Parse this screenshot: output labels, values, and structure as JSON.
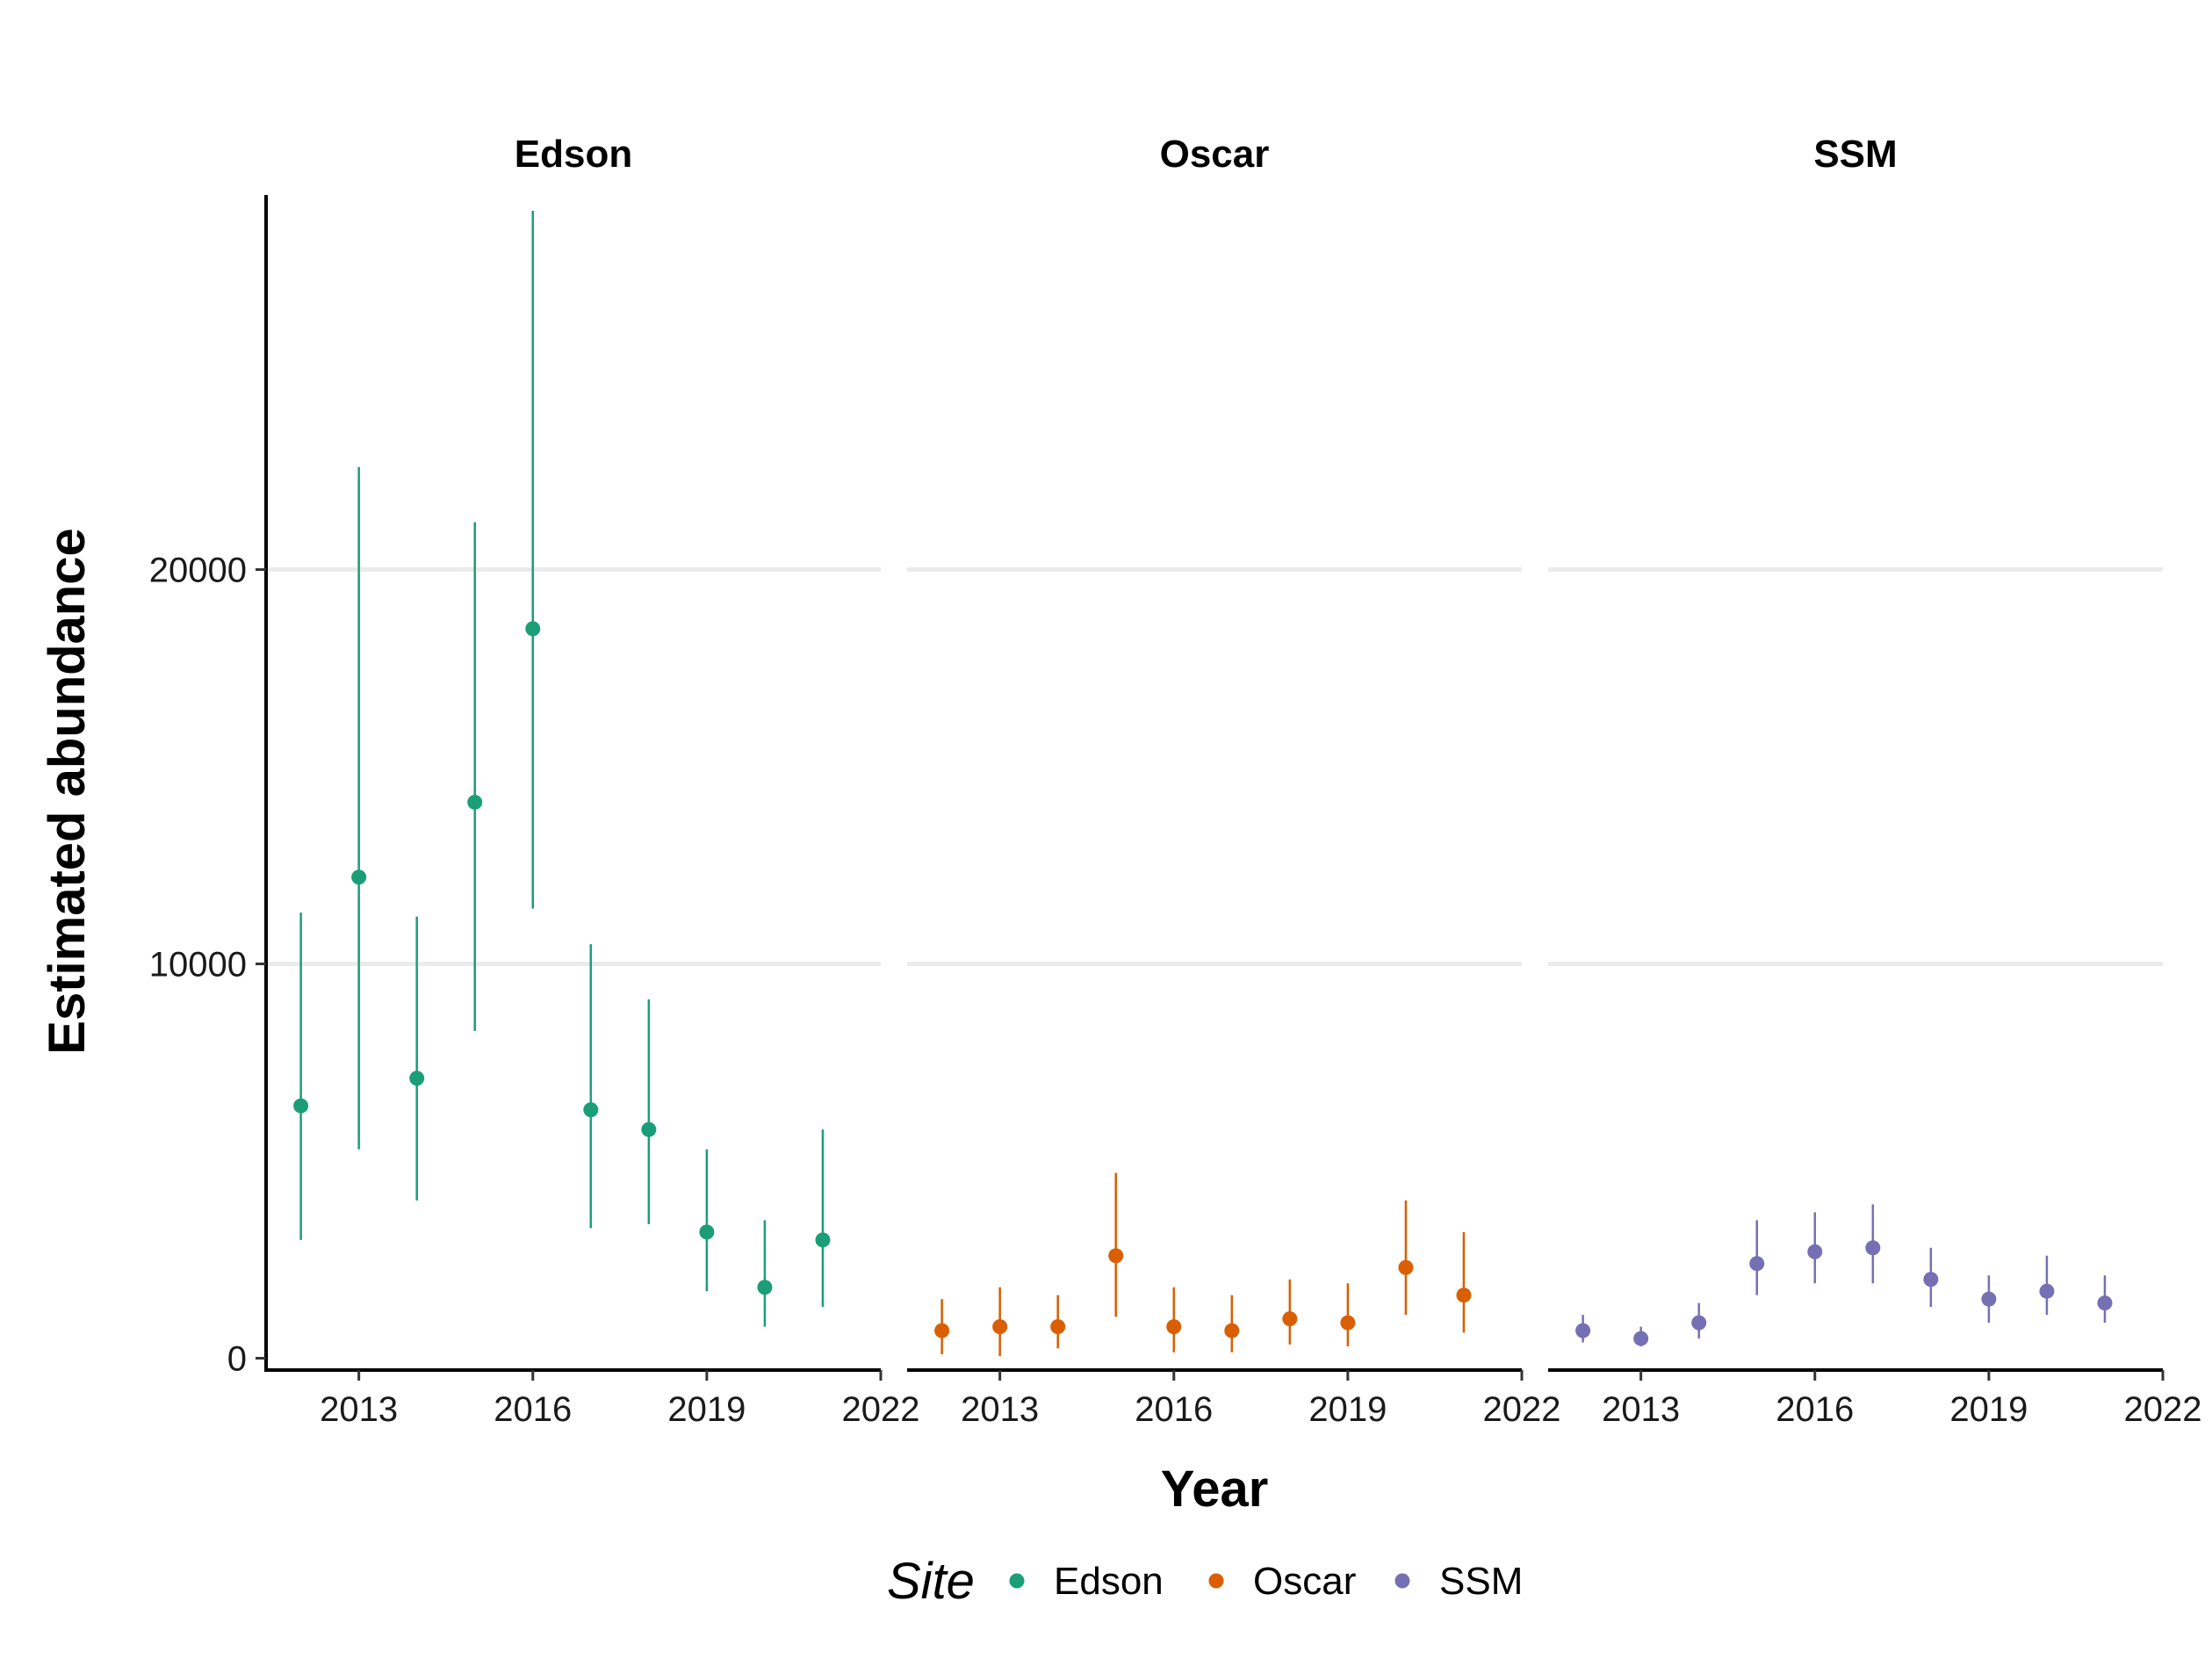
{
  "chart_data": {
    "type": "scatter",
    "subtype": "point-range, faceted by site",
    "xlabel": "Year",
    "ylabel": "Estimated abundance",
    "x_ticks": [
      2013,
      2016,
      2019,
      2022
    ],
    "y_ticks": [
      0,
      10000,
      20000
    ],
    "xlim": [
      2011.4,
      2022
    ],
    "ylim": [
      -300,
      29500
    ],
    "grid": "horizontal major gridlines only",
    "legend": {
      "title": "Site",
      "placement": "bottom",
      "entries": [
        "Edson",
        "Oscar",
        "SSM"
      ]
    },
    "series": [
      {
        "name": "Edson",
        "color": "#1b9e77",
        "points": [
          {
            "x": 2012,
            "y": 6400,
            "lower": 3000,
            "upper": 11300
          },
          {
            "x": 2013,
            "y": 12200,
            "lower": 5300,
            "upper": 22600
          },
          {
            "x": 2014,
            "y": 7100,
            "lower": 4000,
            "upper": 11200
          },
          {
            "x": 2015,
            "y": 14100,
            "lower": 8300,
            "upper": 21200
          },
          {
            "x": 2016,
            "y": 18500,
            "lower": 11400,
            "upper": 29100
          },
          {
            "x": 2017,
            "y": 6300,
            "lower": 3300,
            "upper": 10500
          },
          {
            "x": 2018,
            "y": 5800,
            "lower": 3400,
            "upper": 9100
          },
          {
            "x": 2019,
            "y": 3200,
            "lower": 1700,
            "upper": 5300
          },
          {
            "x": 2020,
            "y": 1800,
            "lower": 800,
            "upper": 3500
          },
          {
            "x": 2021,
            "y": 3000,
            "lower": 1300,
            "upper": 5800
          }
        ]
      },
      {
        "name": "Oscar",
        "color": "#d95f02",
        "points": [
          {
            "x": 2012,
            "y": 700,
            "lower": 100,
            "upper": 1500
          },
          {
            "x": 2013,
            "y": 800,
            "lower": 50,
            "upper": 1800
          },
          {
            "x": 2014,
            "y": 800,
            "lower": 250,
            "upper": 1600
          },
          {
            "x": 2015,
            "y": 2600,
            "lower": 1050,
            "upper": 4700
          },
          {
            "x": 2016,
            "y": 800,
            "lower": 150,
            "upper": 1800
          },
          {
            "x": 2017,
            "y": 700,
            "lower": 150,
            "upper": 1600
          },
          {
            "x": 2018,
            "y": 1000,
            "lower": 350,
            "upper": 2000
          },
          {
            "x": 2019,
            "y": 900,
            "lower": 300,
            "upper": 1900
          },
          {
            "x": 2020,
            "y": 2300,
            "lower": 1100,
            "upper": 4000
          },
          {
            "x": 2021,
            "y": 1600,
            "lower": 650,
            "upper": 3200
          }
        ]
      },
      {
        "name": "SSM",
        "color": "#7570b3",
        "points": [
          {
            "x": 2012,
            "y": 700,
            "lower": 400,
            "upper": 1100
          },
          {
            "x": 2013,
            "y": 500,
            "lower": 300,
            "upper": 800
          },
          {
            "x": 2014,
            "y": 900,
            "lower": 500,
            "upper": 1400
          },
          {
            "x": 2015,
            "y": 2400,
            "lower": 1600,
            "upper": 3500
          },
          {
            "x": 2016,
            "y": 2700,
            "lower": 1900,
            "upper": 3700
          },
          {
            "x": 2017,
            "y": 2800,
            "lower": 1900,
            "upper": 3900
          },
          {
            "x": 2018,
            "y": 2000,
            "lower": 1300,
            "upper": 2800
          },
          {
            "x": 2019,
            "y": 1500,
            "lower": 900,
            "upper": 2100
          },
          {
            "x": 2020,
            "y": 1700,
            "lower": 1100,
            "upper": 2600
          },
          {
            "x": 2021,
            "y": 1400,
            "lower": 900,
            "upper": 2100
          }
        ]
      }
    ]
  }
}
